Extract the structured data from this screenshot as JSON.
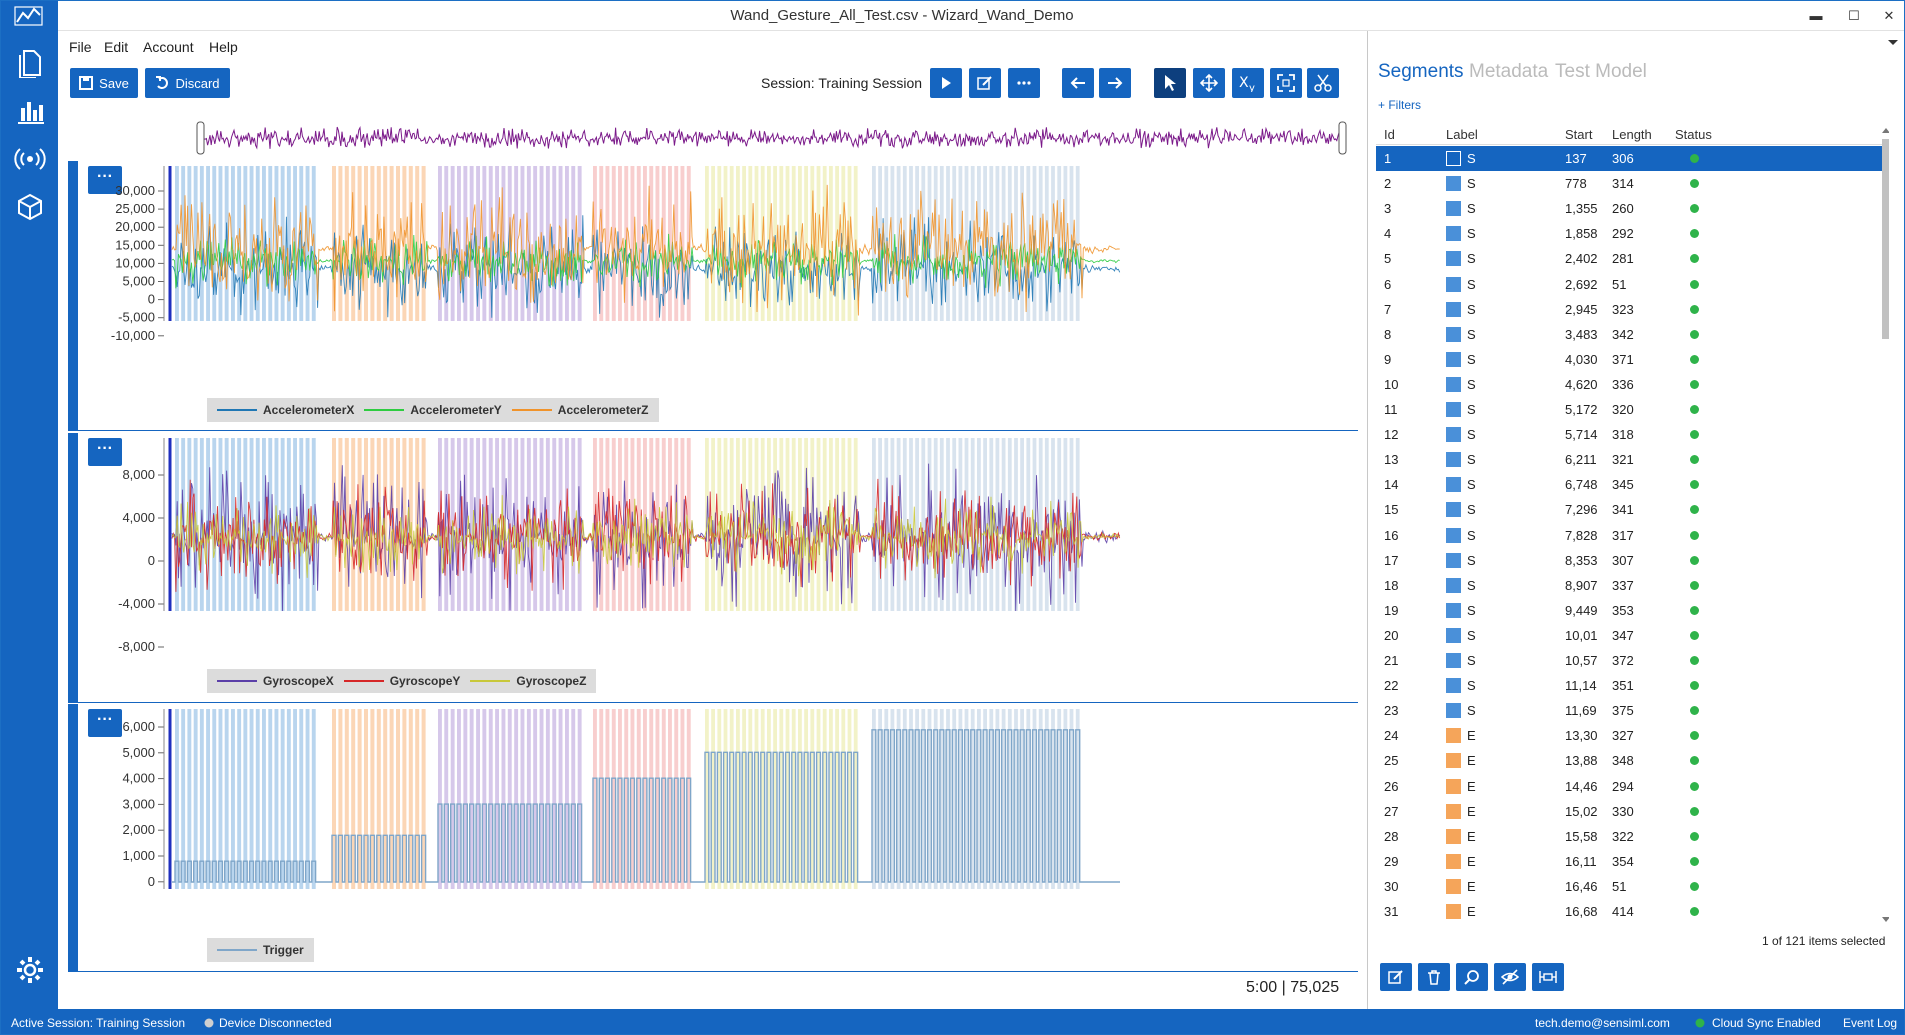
{
  "window": {
    "title": "Wand_Gesture_All_Test.csv - Wizard_Wand_Demo",
    "minimize": "▬",
    "maximize": "☐",
    "close": "✕"
  },
  "menu": [
    "File",
    "Edit",
    "Account",
    "Help"
  ],
  "toolbar": {
    "save_label": "Save",
    "discard_label": "Discard",
    "session_label": "Session:  Training Session"
  },
  "panes": [
    {
      "y_ticks": [
        "30,000",
        "25,000",
        "20,000",
        "15,000",
        "10,000",
        "5,000",
        "0",
        "-5,000",
        "-10,000"
      ],
      "legend": [
        {
          "name": "AccelerometerX",
          "color": "#1f77b4"
        },
        {
          "name": "AccelerometerY",
          "color": "#2ecc40"
        },
        {
          "name": "AccelerometerZ",
          "color": "#f0932b"
        }
      ]
    },
    {
      "y_ticks": [
        "8,000",
        "4,000",
        "0",
        "-4,000",
        "-8,000"
      ],
      "legend": [
        {
          "name": "GyroscopeX",
          "color": "#5b3fa8"
        },
        {
          "name": "GyroscopeY",
          "color": "#d62728"
        },
        {
          "name": "GyroscopeZ",
          "color": "#c8c83a"
        }
      ]
    },
    {
      "y_ticks": [
        "6,000",
        "5,000",
        "4,000",
        "3,000",
        "2,000",
        "1,000",
        "0"
      ],
      "legend": [
        {
          "name": "Trigger",
          "color": "#7fa6c9"
        }
      ]
    }
  ],
  "segment_colors": [
    "#7fb3e0",
    "#f7b57a",
    "#b59ad8",
    "#f2a6a6",
    "#e8e89a",
    "#b8cce0"
  ],
  "overview_color": "#7b1a8a",
  "status_time": "5:00  |  75,025",
  "right_panel": {
    "tabs": [
      "Segments",
      "Metadata",
      "Test Model"
    ],
    "filters_label": "+ Filters",
    "columns": [
      "Id",
      "Label",
      "Start",
      "Length",
      "Status"
    ],
    "rows": [
      {
        "id": "1",
        "label": "S",
        "start": "137",
        "length": "306"
      },
      {
        "id": "2",
        "label": "S",
        "start": "778",
        "length": "314"
      },
      {
        "id": "3",
        "label": "S",
        "start": "1,355",
        "length": "260"
      },
      {
        "id": "4",
        "label": "S",
        "start": "1,858",
        "length": "292"
      },
      {
        "id": "5",
        "label": "S",
        "start": "2,402",
        "length": "281"
      },
      {
        "id": "6",
        "label": "S",
        "start": "2,692",
        "length": "51"
      },
      {
        "id": "7",
        "label": "S",
        "start": "2,945",
        "length": "323"
      },
      {
        "id": "8",
        "label": "S",
        "start": "3,483",
        "length": "342"
      },
      {
        "id": "9",
        "label": "S",
        "start": "4,030",
        "length": "371"
      },
      {
        "id": "10",
        "label": "S",
        "start": "4,620",
        "length": "336"
      },
      {
        "id": "11",
        "label": "S",
        "start": "5,172",
        "length": "320"
      },
      {
        "id": "12",
        "label": "S",
        "start": "5,714",
        "length": "318"
      },
      {
        "id": "13",
        "label": "S",
        "start": "6,211",
        "length": "321"
      },
      {
        "id": "14",
        "label": "S",
        "start": "6,748",
        "length": "345"
      },
      {
        "id": "15",
        "label": "S",
        "start": "7,296",
        "length": "341"
      },
      {
        "id": "16",
        "label": "S",
        "start": "7,828",
        "length": "317"
      },
      {
        "id": "17",
        "label": "S",
        "start": "8,353",
        "length": "307"
      },
      {
        "id": "18",
        "label": "S",
        "start": "8,907",
        "length": "337"
      },
      {
        "id": "19",
        "label": "S",
        "start": "9,449",
        "length": "353"
      },
      {
        "id": "20",
        "label": "S",
        "start": "10,01",
        "length": "347"
      },
      {
        "id": "21",
        "label": "S",
        "start": "10,57",
        "length": "372"
      },
      {
        "id": "22",
        "label": "S",
        "start": "11,14",
        "length": "351"
      },
      {
        "id": "23",
        "label": "S",
        "start": "11,69",
        "length": "375"
      },
      {
        "id": "24",
        "label": "E",
        "start": "13,30",
        "length": "327"
      },
      {
        "id": "25",
        "label": "E",
        "start": "13,88",
        "length": "348"
      },
      {
        "id": "26",
        "label": "E",
        "start": "14,46",
        "length": "294"
      },
      {
        "id": "27",
        "label": "E",
        "start": "15,02",
        "length": "330"
      },
      {
        "id": "28",
        "label": "E",
        "start": "15,58",
        "length": "322"
      },
      {
        "id": "29",
        "label": "E",
        "start": "16,11",
        "length": "354"
      },
      {
        "id": "30",
        "label": "E",
        "start": "16,46",
        "length": "51"
      },
      {
        "id": "31",
        "label": "E",
        "start": "16,68",
        "length": "414"
      }
    ],
    "label_colors": {
      "S": "#4a90d9",
      "E": "#f5a55a"
    },
    "items_selected": "1 of 121 items selected"
  },
  "statusbar": {
    "active_session": "Active Session:  Training Session",
    "device": "Device Disconnected",
    "user": "tech.demo@sensiml.com",
    "cloud": "Cloud Sync Enabled",
    "event_log": "Event Log"
  }
}
